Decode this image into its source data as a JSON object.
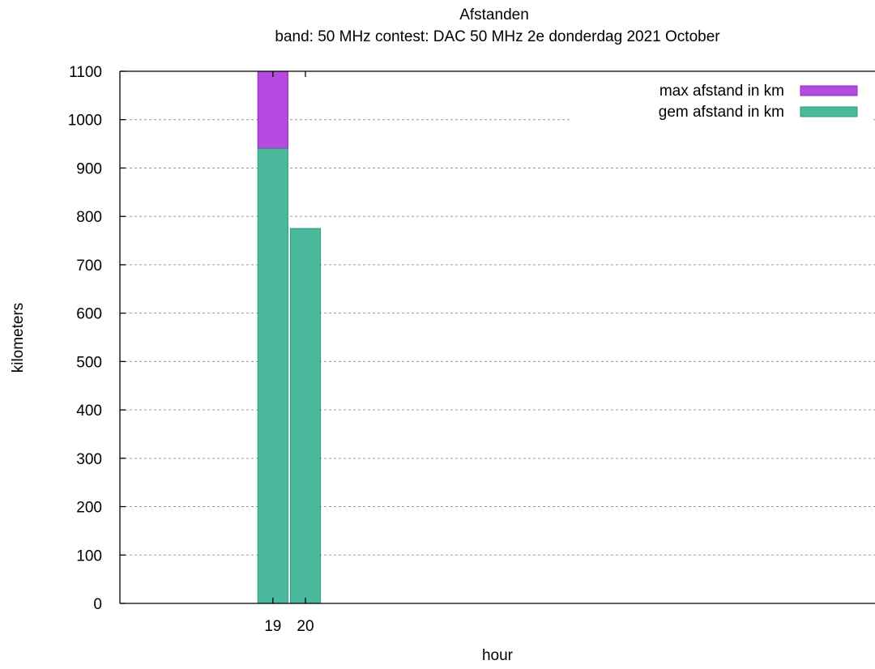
{
  "chart_data": {
    "type": "bar",
    "title": "Afstanden",
    "subtitle": "band: 50 MHz  contest: DAC 50 MHz 2e donderdag 2021 October",
    "xlabel": "hour",
    "ylabel": "kilometers",
    "categories": [
      "19",
      "20"
    ],
    "series": [
      {
        "name": "max afstand in km",
        "color": "#b44ae0",
        "values": [
          1100,
          775
        ]
      },
      {
        "name": "gem afstand in km",
        "color": "#4bba9c",
        "values": [
          940,
          775
        ]
      }
    ],
    "ylim": [
      0,
      1100
    ],
    "yticks": [
      0,
      100,
      200,
      300,
      400,
      500,
      600,
      700,
      800,
      900,
      1000,
      1100
    ],
    "xrange": [
      14.3,
      37.5
    ],
    "grid": true,
    "legend_position": "top-right"
  }
}
